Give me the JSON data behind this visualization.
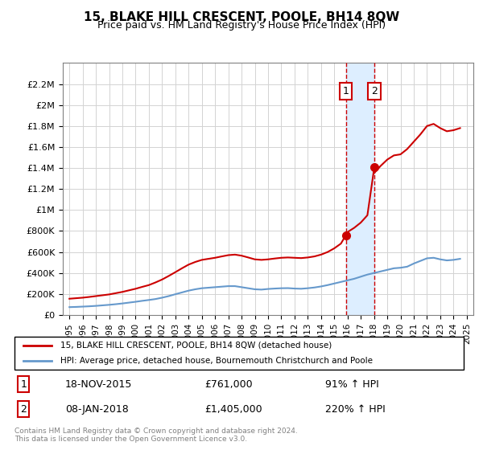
{
  "title": "15, BLAKE HILL CRESCENT, POOLE, BH14 8QW",
  "subtitle": "Price paid vs. HM Land Registry's House Price Index (HPI)",
  "legend_line1": "15, BLAKE HILL CRESCENT, POOLE, BH14 8QW (detached house)",
  "legend_line2": "HPI: Average price, detached house, Bournemouth Christchurch and Poole",
  "footer": "Contains HM Land Registry data © Crown copyright and database right 2024.\nThis data is licensed under the Open Government Licence v3.0.",
  "purchase1_date": "18-NOV-2015",
  "purchase1_price": 761000,
  "purchase1_pct": "91%",
  "purchase2_date": "08-JAN-2018",
  "purchase2_price": 1405000,
  "purchase2_pct": "220%",
  "xlim": [
    1994.5,
    2025.5
  ],
  "ylim": [
    0,
    2400000
  ],
  "yticks": [
    0,
    200000,
    400000,
    600000,
    800000,
    1000000,
    1200000,
    1400000,
    1600000,
    1800000,
    2000000,
    2200000
  ],
  "ytick_labels": [
    "£0",
    "£200K",
    "£400K",
    "£600K",
    "£800K",
    "£1M",
    "£1.2M",
    "£1.4M",
    "£1.6M",
    "£1.8M",
    "£2M",
    "£2.2M"
  ],
  "red_color": "#cc0000",
  "blue_color": "#6699cc",
  "shade_color": "#ddeeff",
  "marker_color": "#cc0000",
  "purchase1_x": 2015.88,
  "purchase2_x": 2018.02,
  "red_x": [
    1995,
    1995.5,
    1996,
    1996.5,
    1997,
    1997.5,
    1998,
    1998.5,
    1999,
    1999.5,
    2000,
    2000.5,
    2001,
    2001.5,
    2002,
    2002.5,
    2003,
    2003.5,
    2004,
    2004.5,
    2005,
    2005.5,
    2006,
    2006.5,
    2007,
    2007.5,
    2008,
    2008.5,
    2009,
    2009.5,
    2010,
    2010.5,
    2011,
    2011.5,
    2012,
    2012.5,
    2013,
    2013.5,
    2014,
    2014.5,
    2015,
    2015.5,
    2015.88,
    2016,
    2016.5,
    2017,
    2017.5,
    2018.02,
    2018,
    2018.5,
    2019,
    2019.5,
    2020,
    2020.5,
    2021,
    2021.5,
    2022,
    2022.5,
    2023,
    2023.5,
    2024,
    2024.5
  ],
  "red_y": [
    155000,
    160000,
    165000,
    172000,
    180000,
    188000,
    196000,
    208000,
    220000,
    235000,
    250000,
    268000,
    285000,
    310000,
    338000,
    372000,
    408000,
    445000,
    480000,
    505000,
    525000,
    535000,
    545000,
    558000,
    570000,
    575000,
    565000,
    548000,
    530000,
    525000,
    530000,
    538000,
    545000,
    548000,
    545000,
    542000,
    548000,
    558000,
    575000,
    600000,
    635000,
    680000,
    761000,
    790000,
    830000,
    880000,
    950000,
    1405000,
    1350000,
    1420000,
    1480000,
    1520000,
    1530000,
    1580000,
    1650000,
    1720000,
    1800000,
    1820000,
    1780000,
    1750000,
    1760000,
    1780000
  ],
  "blue_x": [
    1995,
    1995.5,
    1996,
    1996.5,
    1997,
    1997.5,
    1998,
    1998.5,
    1999,
    1999.5,
    2000,
    2000.5,
    2001,
    2001.5,
    2002,
    2002.5,
    2003,
    2003.5,
    2004,
    2004.5,
    2005,
    2005.5,
    2006,
    2006.5,
    2007,
    2007.5,
    2008,
    2008.5,
    2009,
    2009.5,
    2010,
    2010.5,
    2011,
    2011.5,
    2012,
    2012.5,
    2013,
    2013.5,
    2014,
    2014.5,
    2015,
    2015.5,
    2016,
    2016.5,
    2017,
    2017.5,
    2018,
    2018.5,
    2019,
    2019.5,
    2020,
    2020.5,
    2021,
    2021.5,
    2022,
    2022.5,
    2023,
    2023.5,
    2024,
    2024.5
  ],
  "blue_y": [
    75000,
    77000,
    80000,
    83000,
    87000,
    92000,
    97000,
    103000,
    110000,
    118000,
    126000,
    135000,
    143000,
    152000,
    165000,
    180000,
    198000,
    215000,
    232000,
    245000,
    255000,
    260000,
    265000,
    270000,
    275000,
    275000,
    265000,
    255000,
    245000,
    242000,
    248000,
    252000,
    255000,
    256000,
    252000,
    250000,
    255000,
    262000,
    272000,
    285000,
    300000,
    315000,
    330000,
    345000,
    365000,
    385000,
    400000,
    415000,
    430000,
    445000,
    450000,
    460000,
    490000,
    515000,
    540000,
    545000,
    530000,
    520000,
    525000,
    535000
  ],
  "xticks": [
    1995,
    1996,
    1997,
    1998,
    1999,
    2000,
    2001,
    2002,
    2003,
    2004,
    2005,
    2006,
    2007,
    2008,
    2009,
    2010,
    2011,
    2012,
    2013,
    2014,
    2015,
    2016,
    2017,
    2018,
    2019,
    2020,
    2021,
    2022,
    2023,
    2024,
    2025
  ]
}
